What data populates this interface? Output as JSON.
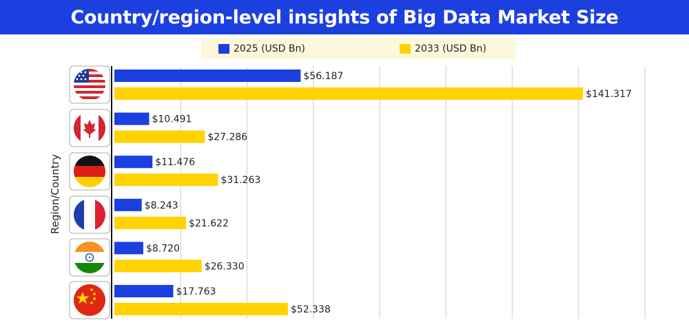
{
  "title": "Country/region-level insights of Big Data Market Size",
  "colors": {
    "title_bg": "#1c3fe0",
    "series_2025": "#1c3fe0",
    "series_2033": "#ffd200",
    "legend_bg": "#fdf7dc"
  },
  "chart_data": {
    "type": "bar",
    "orientation": "horizontal",
    "title": "Country/region-level insights of Big Data Market Size",
    "ylabel": "Region/Country",
    "xlabel": "",
    "categories": [
      "United States",
      "Canada",
      "Germany",
      "France",
      "India",
      "China"
    ],
    "category_icons": [
      "us-flag-icon",
      "canada-flag-icon",
      "germany-flag-icon",
      "france-flag-icon",
      "india-flag-icon",
      "china-flag-icon"
    ],
    "series": [
      {
        "name": "2025 (USD Bn)",
        "color": "#1c3fe0",
        "values": [
          56.187,
          10.491,
          11.476,
          8.243,
          8.72,
          17.763
        ],
        "labels": [
          "$56.187",
          "$10.491",
          "$11.476",
          "$8.243",
          "$8.720",
          "$17.763"
        ]
      },
      {
        "name": "2033 (USD Bn)",
        "color": "#ffd200",
        "values": [
          141.317,
          27.286,
          31.263,
          21.622,
          26.33,
          52.338
        ],
        "labels": [
          "$141.317",
          "$27.286",
          "$31.263",
          "$21.622",
          "$26.330",
          "$52.338"
        ]
      }
    ],
    "xlim": [
      0,
      160
    ],
    "grid": true,
    "legend_position": "top"
  }
}
